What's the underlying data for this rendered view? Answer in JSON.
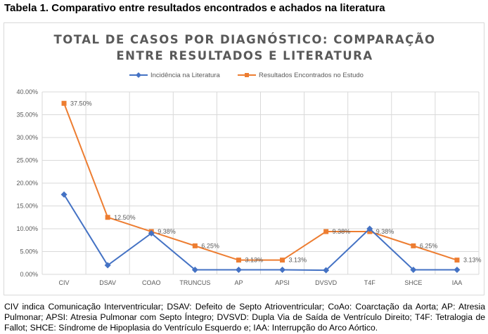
{
  "table_title": "Tabela 1. Comparativo entre resultados encontrados e achados na literatura",
  "caption": "CIV indica Comunicação Interventricular; DSAV: Defeito de Septo Atrioventricular; CoAo: Coarctação da Aorta; AP: Atresia Pulmonar; APSI: Atresia Pulmonar com Septo Íntegro; DVSVD: Dupla Via de Saída de Ventrículo Direito; T4F: Tetralogia de Fallot; SHCE: Síndrome de Hipoplasia do Ventrículo Esquerdo e; IAA: Interrupção do Arco Aórtico.",
  "chart_data": {
    "type": "line",
    "title_lines": [
      "TOTAL DE CASOS POR DIAGNÓSTICO: COMPARAÇÃO",
      "ENTRE RESULTADOS E LITERATURA"
    ],
    "categories": [
      "CIV",
      "DSAV",
      "COAO",
      "TRUNCUS",
      "AP",
      "APSI",
      "DVSVD",
      "T4F",
      "SHCE",
      "IAA"
    ],
    "ylim": [
      0,
      0.4
    ],
    "yticks": [
      0,
      0.05,
      0.1,
      0.15,
      0.2,
      0.25,
      0.3,
      0.35,
      0.4
    ],
    "ytick_labels": [
      "0.00%",
      "5.00%",
      "10.00%",
      "15.00%",
      "20.00%",
      "25.00%",
      "30.00%",
      "35.00%",
      "40.00%"
    ],
    "vertical_gridlines": true,
    "legend_position": "top",
    "series": [
      {
        "name": "Incidência na Literatura",
        "color": "#4472c4",
        "marker": "diamond",
        "values": [
          0.175,
          0.02,
          0.09,
          0.01,
          0.01,
          0.01,
          0.009,
          0.1,
          0.01,
          0.01
        ],
        "data_labels": []
      },
      {
        "name": "Resultados Encontrados no Estudo",
        "color": "#ed7d31",
        "marker": "square",
        "values": [
          0.375,
          0.125,
          0.0938,
          0.0625,
          0.0313,
          0.0313,
          0.0938,
          0.0938,
          0.0625,
          0.0313
        ],
        "data_labels": [
          "37.50%",
          "12.50%",
          "9.38%",
          "6.25%",
          "3.13%",
          "3.13%",
          "9.38%",
          "9.38%",
          "6.25%",
          "3.13%"
        ]
      }
    ]
  }
}
